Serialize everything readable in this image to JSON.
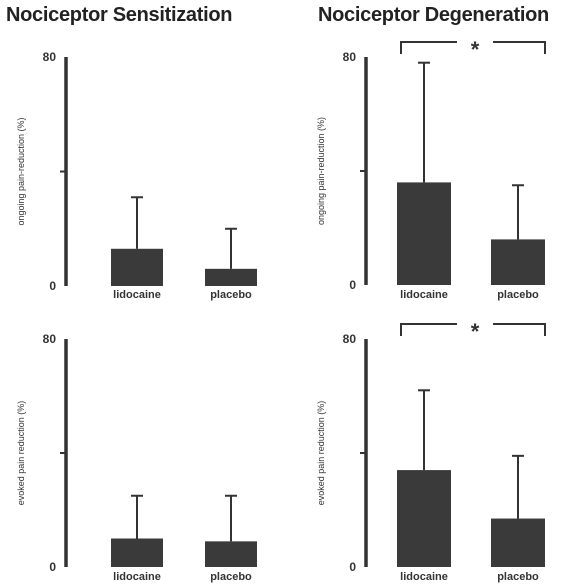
{
  "titles": {
    "left": "Nociceptor Sensitization",
    "right": "Nociceptor Degeneration"
  },
  "colors": {
    "bar": "#3a3a3a",
    "axis": "#333333"
  },
  "chart_data": [
    {
      "id": "sens-ongoing",
      "type": "bar",
      "group": "Nociceptor Sensitization",
      "ylabel": "ongoing pain-reduction (%)",
      "ylim": [
        0,
        80
      ],
      "yticks": [
        "0",
        "80"
      ],
      "categories": [
        "lidocaine",
        "placebo"
      ],
      "values": [
        13,
        6
      ],
      "errors": [
        18,
        14
      ],
      "significance": null
    },
    {
      "id": "degen-ongoing",
      "type": "bar",
      "group": "Nociceptor Degeneration",
      "ylabel": "ongoing pain-reduction (%)",
      "ylim": [
        0,
        80
      ],
      "yticks": [
        "0",
        "80"
      ],
      "categories": [
        "lidocaine",
        "placebo"
      ],
      "values": [
        36,
        16
      ],
      "errors": [
        42,
        19
      ],
      "significance": "*"
    },
    {
      "id": "sens-evoked",
      "type": "bar",
      "group": "Nociceptor Sensitization",
      "ylabel": "evoked pain reduction (%)",
      "ylim": [
        0,
        80
      ],
      "yticks": [
        "0",
        "80"
      ],
      "categories": [
        "lidocaine",
        "placebo"
      ],
      "values": [
        10,
        9
      ],
      "errors": [
        15,
        16
      ],
      "significance": null
    },
    {
      "id": "degen-evoked",
      "type": "bar",
      "group": "Nociceptor Degeneration",
      "ylabel": "evoked pain reduction (%)",
      "ylim": [
        0,
        80
      ],
      "yticks": [
        "0",
        "80"
      ],
      "categories": [
        "lidocaine",
        "placebo"
      ],
      "values": [
        34,
        17
      ],
      "errors": [
        28,
        22
      ],
      "significance": "*"
    }
  ]
}
